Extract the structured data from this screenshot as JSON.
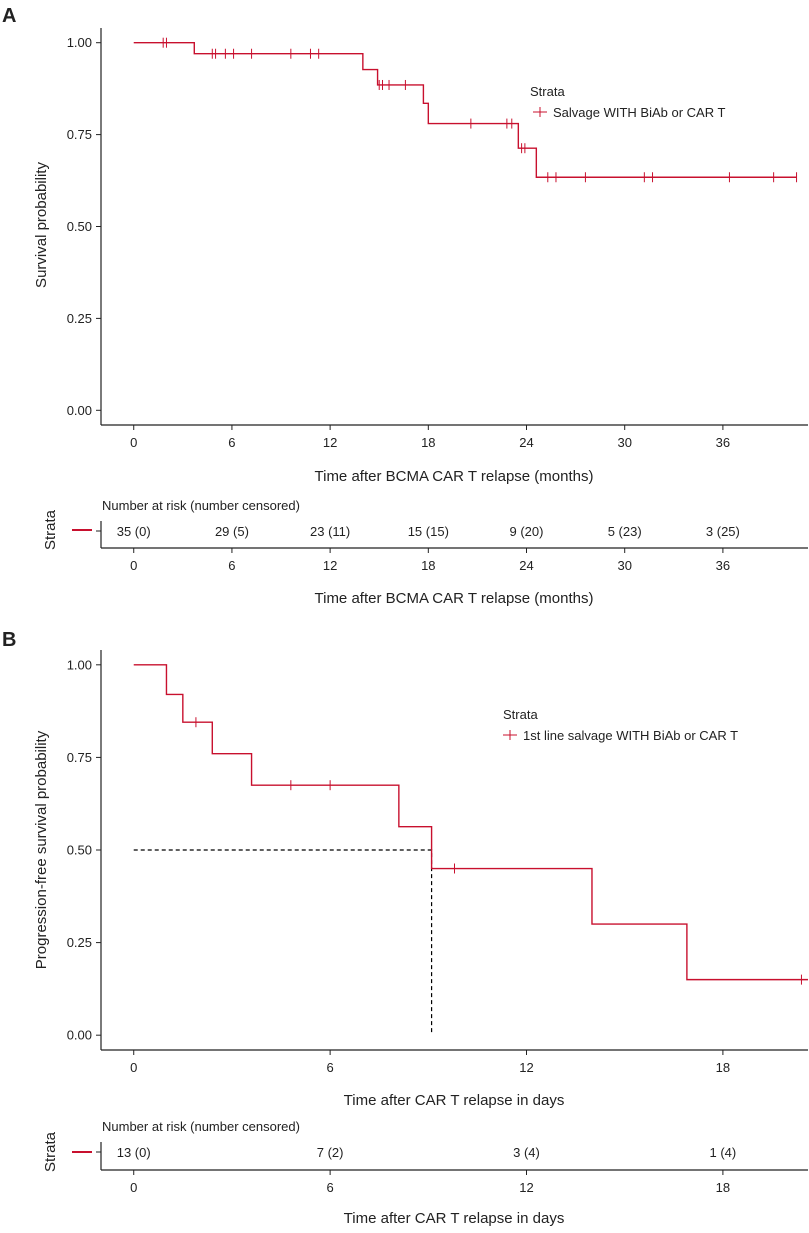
{
  "chart_data": [
    {
      "type": "line",
      "panel_label": "A",
      "xlabel": "Time after BCMA CAR T relapse (months)",
      "ylabel": "Survival probability",
      "xticks": [
        0,
        6,
        12,
        18,
        24,
        30,
        36
      ],
      "yticks": [
        "0.00",
        "0.25",
        "0.50",
        "0.75",
        "1.00"
      ],
      "xlim": [
        -2,
        41.2
      ],
      "ylim": [
        -0.04,
        1.04
      ],
      "grid": false,
      "legend": {
        "title": "Strata",
        "position": "top-right",
        "label": "Salvage WITH BiAb or CAR T"
      },
      "series": [
        {
          "name": "Salvage WITH BiAb or CAR T",
          "color": "#c8102e",
          "steps": [
            [
              0,
              1.0
            ],
            [
              3.7,
              0.97
            ],
            [
              14.0,
              0.927
            ],
            [
              14.9,
              0.885
            ],
            [
              17.7,
              0.835
            ],
            [
              18.0,
              0.78
            ],
            [
              23.5,
              0.713
            ],
            [
              24.6,
              0.634
            ],
            [
              40.5,
              0.634
            ]
          ],
          "censored": [
            [
              1.8,
              1.0
            ],
            [
              2.0,
              1.0
            ],
            [
              4.8,
              0.97
            ],
            [
              5.0,
              0.97
            ],
            [
              5.6,
              0.97
            ],
            [
              6.1,
              0.97
            ],
            [
              7.2,
              0.97
            ],
            [
              9.6,
              0.97
            ],
            [
              10.8,
              0.97
            ],
            [
              11.3,
              0.97
            ],
            [
              15.0,
              0.885
            ],
            [
              15.2,
              0.885
            ],
            [
              15.6,
              0.885
            ],
            [
              16.6,
              0.885
            ],
            [
              20.6,
              0.78
            ],
            [
              22.8,
              0.78
            ],
            [
              23.1,
              0.78
            ],
            [
              23.7,
              0.713
            ],
            [
              23.9,
              0.713
            ],
            [
              25.3,
              0.634
            ],
            [
              25.8,
              0.634
            ],
            [
              27.6,
              0.634
            ],
            [
              31.2,
              0.634
            ],
            [
              31.7,
              0.634
            ],
            [
              36.4,
              0.634
            ],
            [
              39.1,
              0.634
            ],
            [
              40.5,
              0.634
            ]
          ]
        }
      ],
      "risk_table": {
        "title": "Number at risk (number censored)",
        "ylabel": "Strata",
        "xlabel": "Time after BCMA CAR T relapse (months)",
        "times": [
          0,
          6,
          12,
          18,
          24,
          30,
          36
        ],
        "values": [
          "35 (0)",
          "29 (5)",
          "23 (11)",
          "15 (15)",
          "9 (20)",
          "5 (23)",
          "3 (25)"
        ]
      }
    },
    {
      "type": "line",
      "panel_label": "B",
      "xlabel": "Time after CAR T relapse in days",
      "ylabel": "Progression-free survival probability",
      "xticks": [
        0,
        6,
        12,
        18
      ],
      "yticks": [
        "0.00",
        "0.25",
        "0.50",
        "0.75",
        "1.00"
      ],
      "xlim": [
        -1,
        20.6
      ],
      "ylim": [
        -0.04,
        1.04
      ],
      "grid": false,
      "legend": {
        "title": "Strata",
        "position": "top-right",
        "label": "1st line salvage WITH BiAb or CAR T"
      },
      "median": {
        "x": 9.1,
        "y": 0.5
      },
      "series": [
        {
          "name": "1st line salvage WITH BiAb or CAR T",
          "color": "#c8102e",
          "steps": [
            [
              0,
              1.0
            ],
            [
              1.0,
              0.92
            ],
            [
              1.5,
              0.845
            ],
            [
              2.4,
              0.76
            ],
            [
              3.6,
              0.675
            ],
            [
              8.1,
              0.563
            ],
            [
              9.1,
              0.45
            ],
            [
              14.0,
              0.3
            ],
            [
              16.9,
              0.15
            ],
            [
              20.6,
              0.15
            ]
          ],
          "censored": [
            [
              1.9,
              0.845
            ],
            [
              4.8,
              0.675
            ],
            [
              6.0,
              0.675
            ],
            [
              9.8,
              0.45
            ],
            [
              20.4,
              0.15
            ]
          ]
        }
      ],
      "risk_table": {
        "title": "Number at risk (number censored)",
        "ylabel": "Strata",
        "xlabel": "Time after CAR T relapse in days",
        "times": [
          0,
          6,
          12,
          18
        ],
        "values": [
          "13 (0)",
          "7 (2)",
          "3 (4)",
          "1 (4)"
        ]
      }
    }
  ]
}
